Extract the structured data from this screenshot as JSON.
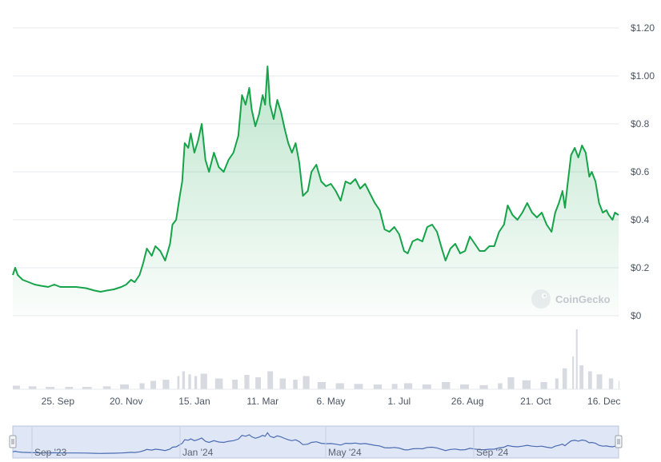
{
  "watermark": {
    "text": "CoinGecko"
  },
  "colors": {
    "price_line": "#16a34a",
    "price_fill_top": "#16a34a",
    "grid": "#e6e8ec",
    "axis_text": "#4b5563",
    "volume_bar": "#d7dae0",
    "navigator_bg": "#dfe6f5",
    "navigator_line": "#4a6cb3",
    "navigator_border": "#b9c4dd"
  },
  "navigator": {
    "labels": [
      "Sep '23",
      "Jan '24",
      "May '24",
      "Sep '24"
    ],
    "handle_left_icon": "drag-handle-icon",
    "handle_right_icon": "drag-handle-icon"
  },
  "chart_data": {
    "type": "line",
    "title": "",
    "xlabel": "",
    "ylabel": "",
    "ylim": [
      0,
      1.2
    ],
    "yticks": [
      {
        "value": 0,
        "label": "$0"
      },
      {
        "value": 0.2,
        "label": "$0.2"
      },
      {
        "value": 0.4,
        "label": "$0.4"
      },
      {
        "value": 0.6,
        "label": "$0.6"
      },
      {
        "value": 0.8,
        "label": "$0.8"
      },
      {
        "value": 1.0,
        "label": "$1.00"
      },
      {
        "value": 1.2,
        "label": "$1.20"
      }
    ],
    "xrange": [
      "2023-08-19",
      "2024-12-28"
    ],
    "xticks": [
      {
        "date": "2023-09-25",
        "label": "25. Sep"
      },
      {
        "date": "2023-11-20",
        "label": "20. Nov"
      },
      {
        "date": "2024-01-15",
        "label": "15. Jan"
      },
      {
        "date": "2024-03-11",
        "label": "11. Mar"
      },
      {
        "date": "2024-05-06",
        "label": "6. May"
      },
      {
        "date": "2024-07-01",
        "label": "1. Jul"
      },
      {
        "date": "2024-08-26",
        "label": "26. Aug"
      },
      {
        "date": "2024-10-21",
        "label": "21. Oct"
      },
      {
        "date": "2024-12-16",
        "label": "16. Dec"
      }
    ],
    "series": [
      {
        "points": [
          [
            "2023-08-19",
            0.17
          ],
          [
            "2023-08-21",
            0.2
          ],
          [
            "2023-08-23",
            0.17
          ],
          [
            "2023-08-27",
            0.15
          ],
          [
            "2023-09-01",
            0.14
          ],
          [
            "2023-09-06",
            0.13
          ],
          [
            "2023-09-11",
            0.125
          ],
          [
            "2023-09-17",
            0.12
          ],
          [
            "2023-09-22",
            0.13
          ],
          [
            "2023-09-27",
            0.12
          ],
          [
            "2023-10-03",
            0.12
          ],
          [
            "2023-10-10",
            0.12
          ],
          [
            "2023-10-18",
            0.115
          ],
          [
            "2023-10-25",
            0.105
          ],
          [
            "2023-10-30",
            0.1
          ],
          [
            "2023-11-04",
            0.105
          ],
          [
            "2023-11-10",
            0.11
          ],
          [
            "2023-11-16",
            0.12
          ],
          [
            "2023-11-20",
            0.13
          ],
          [
            "2023-11-24",
            0.15
          ],
          [
            "2023-11-27",
            0.14
          ],
          [
            "2023-12-01",
            0.17
          ],
          [
            "2023-12-04",
            0.22
          ],
          [
            "2023-12-07",
            0.28
          ],
          [
            "2023-12-11",
            0.25
          ],
          [
            "2023-12-14",
            0.29
          ],
          [
            "2023-12-18",
            0.27
          ],
          [
            "2023-12-22",
            0.23
          ],
          [
            "2023-12-26",
            0.3
          ],
          [
            "2023-12-28",
            0.38
          ],
          [
            "2023-12-31",
            0.4
          ],
          [
            "2024-01-03",
            0.5
          ],
          [
            "2024-01-05",
            0.56
          ],
          [
            "2024-01-07",
            0.72
          ],
          [
            "2024-01-10",
            0.7
          ],
          [
            "2024-01-12",
            0.76
          ],
          [
            "2024-01-15",
            0.68
          ],
          [
            "2024-01-18",
            0.73
          ],
          [
            "2024-01-21",
            0.8
          ],
          [
            "2024-01-24",
            0.65
          ],
          [
            "2024-01-27",
            0.6
          ],
          [
            "2024-01-31",
            0.68
          ],
          [
            "2024-02-04",
            0.62
          ],
          [
            "2024-02-08",
            0.6
          ],
          [
            "2024-02-12",
            0.65
          ],
          [
            "2024-02-16",
            0.68
          ],
          [
            "2024-02-20",
            0.75
          ],
          [
            "2024-02-23",
            0.92
          ],
          [
            "2024-02-26",
            0.88
          ],
          [
            "2024-02-29",
            0.95
          ],
          [
            "2024-03-02",
            0.86
          ],
          [
            "2024-03-05",
            0.79
          ],
          [
            "2024-03-08",
            0.84
          ],
          [
            "2024-03-11",
            0.92
          ],
          [
            "2024-03-13",
            0.88
          ],
          [
            "2024-03-15",
            1.04
          ],
          [
            "2024-03-17",
            0.88
          ],
          [
            "2024-03-20",
            0.82
          ],
          [
            "2024-03-23",
            0.9
          ],
          [
            "2024-03-26",
            0.85
          ],
          [
            "2024-03-29",
            0.78
          ],
          [
            "2024-04-01",
            0.72
          ],
          [
            "2024-04-04",
            0.68
          ],
          [
            "2024-04-07",
            0.72
          ],
          [
            "2024-04-10",
            0.64
          ],
          [
            "2024-04-13",
            0.5
          ],
          [
            "2024-04-17",
            0.52
          ],
          [
            "2024-04-20",
            0.6
          ],
          [
            "2024-04-24",
            0.63
          ],
          [
            "2024-04-28",
            0.56
          ],
          [
            "2024-05-02",
            0.54
          ],
          [
            "2024-05-06",
            0.55
          ],
          [
            "2024-05-10",
            0.52
          ],
          [
            "2024-05-14",
            0.48
          ],
          [
            "2024-05-18",
            0.56
          ],
          [
            "2024-05-22",
            0.55
          ],
          [
            "2024-05-26",
            0.57
          ],
          [
            "2024-05-30",
            0.53
          ],
          [
            "2024-06-03",
            0.55
          ],
          [
            "2024-06-07",
            0.51
          ],
          [
            "2024-06-11",
            0.47
          ],
          [
            "2024-06-15",
            0.44
          ],
          [
            "2024-06-19",
            0.36
          ],
          [
            "2024-06-23",
            0.35
          ],
          [
            "2024-06-27",
            0.37
          ],
          [
            "2024-07-01",
            0.34
          ],
          [
            "2024-07-05",
            0.27
          ],
          [
            "2024-07-08",
            0.26
          ],
          [
            "2024-07-12",
            0.31
          ],
          [
            "2024-07-16",
            0.32
          ],
          [
            "2024-07-20",
            0.31
          ],
          [
            "2024-07-24",
            0.37
          ],
          [
            "2024-07-28",
            0.38
          ],
          [
            "2024-08-01",
            0.35
          ],
          [
            "2024-08-05",
            0.28
          ],
          [
            "2024-08-08",
            0.23
          ],
          [
            "2024-08-12",
            0.28
          ],
          [
            "2024-08-16",
            0.3
          ],
          [
            "2024-08-20",
            0.26
          ],
          [
            "2024-08-24",
            0.27
          ],
          [
            "2024-08-28",
            0.33
          ],
          [
            "2024-09-01",
            0.3
          ],
          [
            "2024-09-05",
            0.27
          ],
          [
            "2024-09-09",
            0.27
          ],
          [
            "2024-09-13",
            0.29
          ],
          [
            "2024-09-17",
            0.29
          ],
          [
            "2024-09-21",
            0.35
          ],
          [
            "2024-09-25",
            0.38
          ],
          [
            "2024-09-28",
            0.46
          ],
          [
            "2024-10-02",
            0.42
          ],
          [
            "2024-10-06",
            0.4
          ],
          [
            "2024-10-10",
            0.43
          ],
          [
            "2024-10-14",
            0.47
          ],
          [
            "2024-10-18",
            0.43
          ],
          [
            "2024-10-22",
            0.41
          ],
          [
            "2024-10-26",
            0.43
          ],
          [
            "2024-10-30",
            0.38
          ],
          [
            "2024-11-03",
            0.35
          ],
          [
            "2024-11-06",
            0.43
          ],
          [
            "2024-11-09",
            0.47
          ],
          [
            "2024-11-12",
            0.52
          ],
          [
            "2024-11-14",
            0.45
          ],
          [
            "2024-11-16",
            0.54
          ],
          [
            "2024-11-19",
            0.67
          ],
          [
            "2024-11-22",
            0.7
          ],
          [
            "2024-11-25",
            0.66
          ],
          [
            "2024-11-28",
            0.71
          ],
          [
            "2024-12-01",
            0.68
          ],
          [
            "2024-12-04",
            0.58
          ],
          [
            "2024-12-06",
            0.6
          ],
          [
            "2024-12-09",
            0.56
          ],
          [
            "2024-12-12",
            0.47
          ],
          [
            "2024-12-15",
            0.43
          ],
          [
            "2024-12-18",
            0.44
          ],
          [
            "2024-12-20",
            0.42
          ],
          [
            "2024-12-23",
            0.4
          ],
          [
            "2024-12-25",
            0.43
          ],
          [
            "2024-12-28",
            0.42
          ]
        ]
      }
    ],
    "volume": {
      "max": 100,
      "points": [
        [
          "2023-08-19",
          6
        ],
        [
          "2023-09-01",
          5
        ],
        [
          "2023-09-15",
          4
        ],
        [
          "2023-10-01",
          4
        ],
        [
          "2023-10-15",
          4
        ],
        [
          "2023-11-01",
          5
        ],
        [
          "2023-11-15",
          8
        ],
        [
          "2023-12-01",
          10
        ],
        [
          "2023-12-10",
          14
        ],
        [
          "2023-12-20",
          16
        ],
        [
          "2024-01-01",
          22
        ],
        [
          "2024-01-05",
          30
        ],
        [
          "2024-01-10",
          25
        ],
        [
          "2024-01-15",
          22
        ],
        [
          "2024-01-20",
          26
        ],
        [
          "2024-02-01",
          18
        ],
        [
          "2024-02-15",
          16
        ],
        [
          "2024-02-25",
          24
        ],
        [
          "2024-03-05",
          20
        ],
        [
          "2024-03-15",
          30
        ],
        [
          "2024-03-25",
          18
        ],
        [
          "2024-04-05",
          16
        ],
        [
          "2024-04-13",
          22
        ],
        [
          "2024-04-25",
          12
        ],
        [
          "2024-05-10",
          10
        ],
        [
          "2024-05-25",
          9
        ],
        [
          "2024-06-10",
          8
        ],
        [
          "2024-06-25",
          9
        ],
        [
          "2024-07-05",
          10
        ],
        [
          "2024-07-20",
          8
        ],
        [
          "2024-08-05",
          12
        ],
        [
          "2024-08-20",
          8
        ],
        [
          "2024-09-05",
          7
        ],
        [
          "2024-09-20",
          10
        ],
        [
          "2024-09-28",
          20
        ],
        [
          "2024-10-10",
          15
        ],
        [
          "2024-10-25",
          12
        ],
        [
          "2024-11-06",
          18
        ],
        [
          "2024-11-12",
          35
        ],
        [
          "2024-11-20",
          55
        ],
        [
          "2024-11-23",
          100
        ],
        [
          "2024-11-26",
          40
        ],
        [
          "2024-12-03",
          30
        ],
        [
          "2024-12-10",
          25
        ],
        [
          "2024-12-20",
          18
        ],
        [
          "2024-12-28",
          14
        ]
      ]
    }
  }
}
